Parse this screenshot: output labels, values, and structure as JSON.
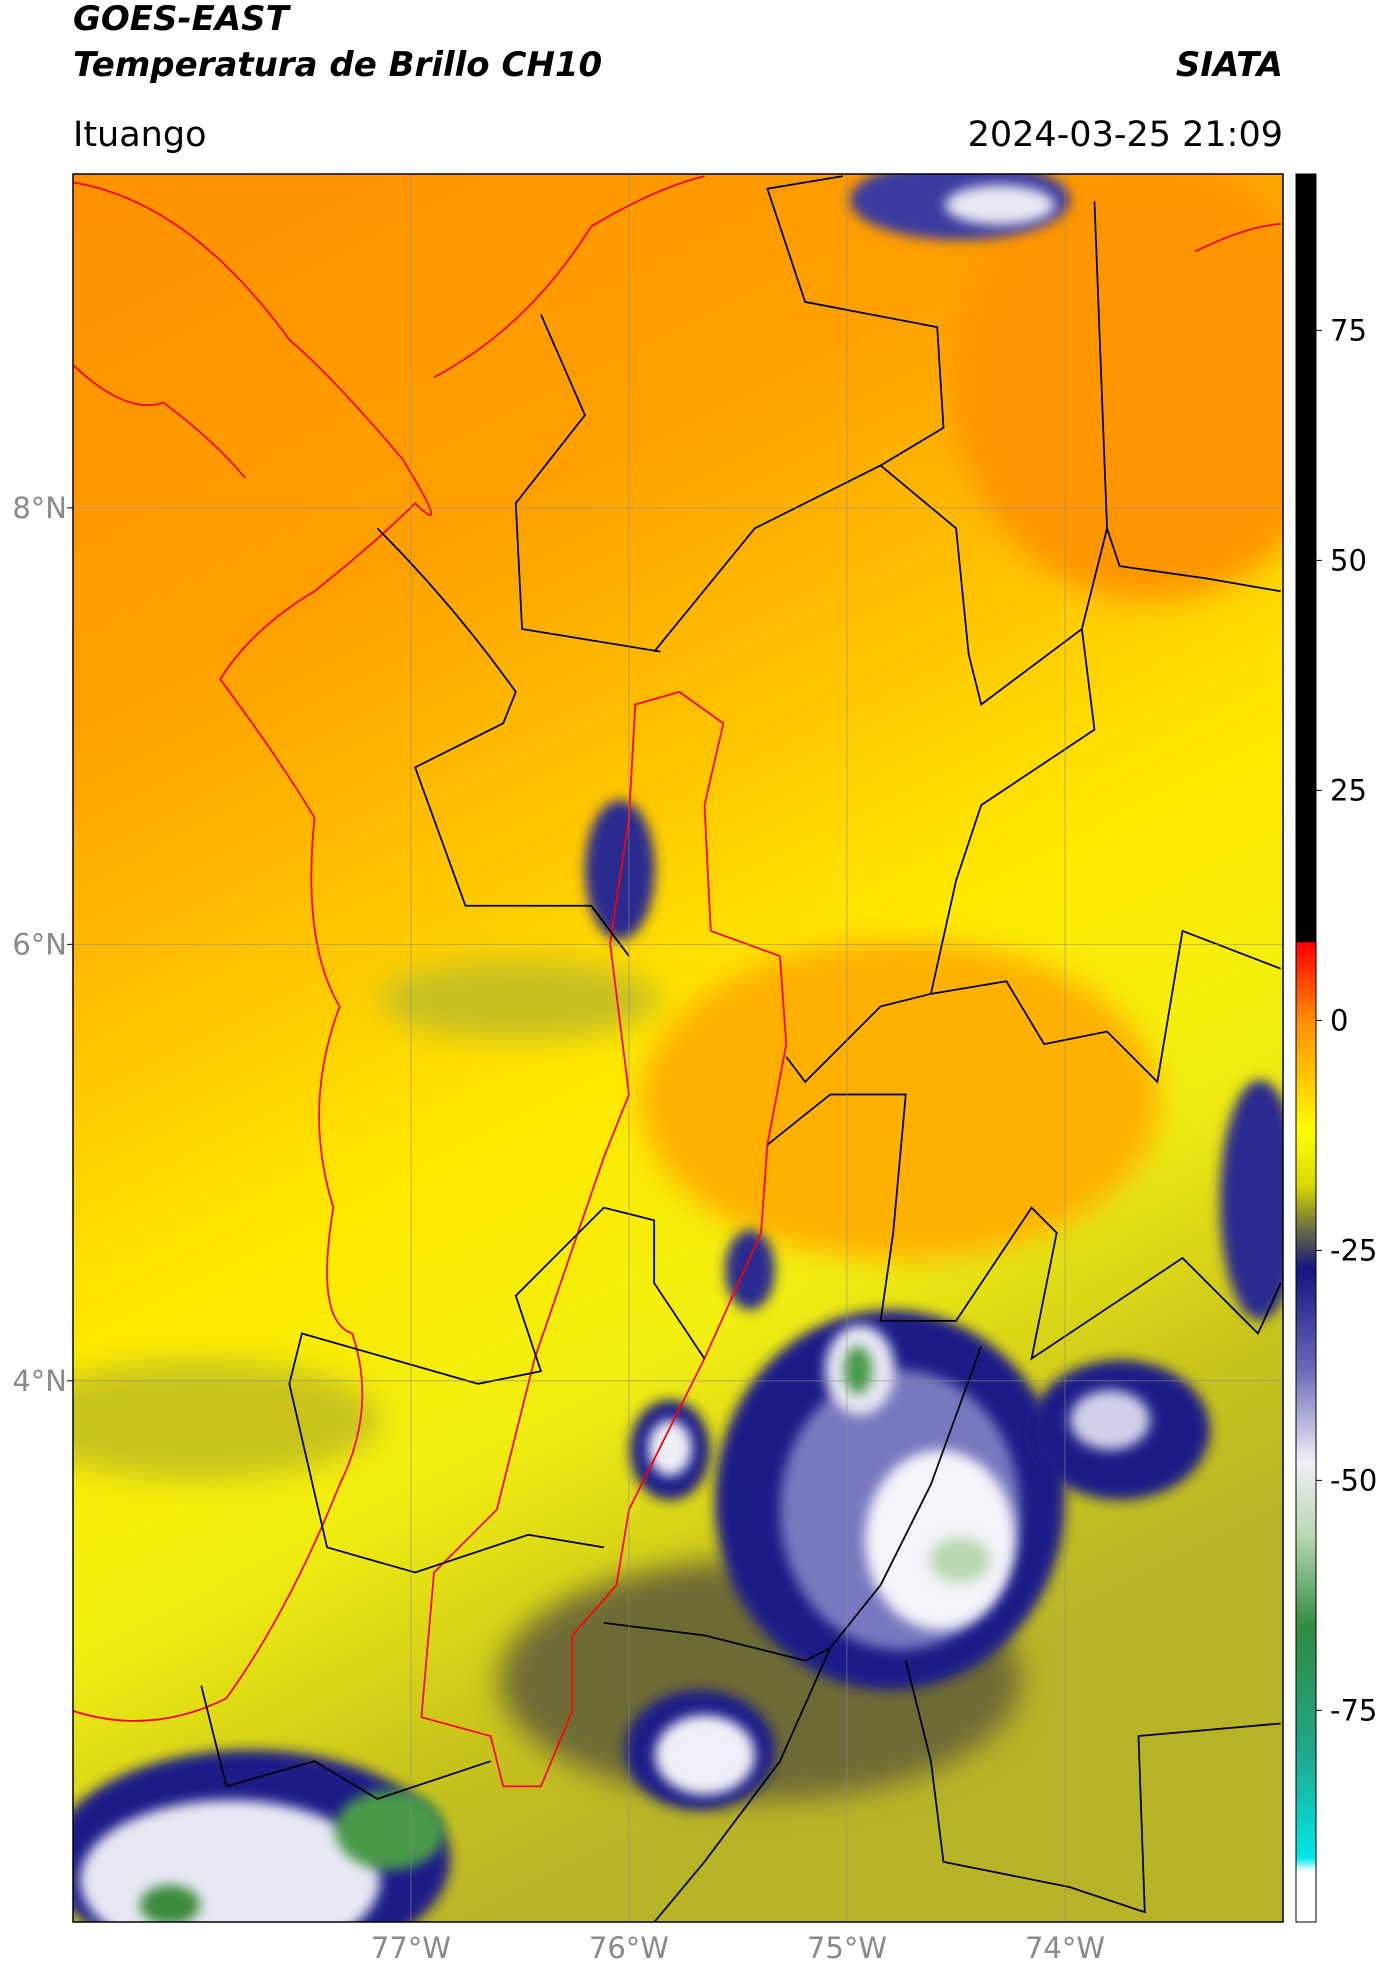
{
  "header": {
    "title": "GOES-EAST",
    "subtitle": "Temperatura de Brillo CH10",
    "source": "SIATA",
    "region": "Ituango",
    "datetime": "2024-03-25 21:09"
  },
  "map": {
    "xlim": [
      -78.55,
      -73.0
    ],
    "ylim": [
      1.52,
      9.53
    ],
    "xticks": [
      {
        "value": -77,
        "label": "77°W"
      },
      {
        "value": -76,
        "label": "76°W"
      },
      {
        "value": -75,
        "label": "75°W"
      },
      {
        "value": -74,
        "label": "74°W"
      }
    ],
    "yticks": [
      {
        "value": 8,
        "label": "8°N"
      },
      {
        "value": 6,
        "label": "6°N"
      },
      {
        "value": 4,
        "label": "4°N"
      }
    ],
    "grid": true
  },
  "colorbar": {
    "lim": [
      -98,
      92
    ],
    "ticks": [
      75,
      50,
      25,
      0,
      -25,
      -50,
      -75
    ],
    "colormap": [
      [
        92,
        "#000000"
      ],
      [
        8.6,
        "#000000"
      ],
      [
        8.4,
        "#ff0000"
      ],
      [
        0,
        "#ff8c00"
      ],
      [
        -12,
        "#ffff00"
      ],
      [
        -18,
        "#d8d800"
      ],
      [
        -22,
        "#7a7a3a"
      ],
      [
        -27,
        "#141480"
      ],
      [
        -38,
        "#6a6ab8"
      ],
      [
        -48,
        "#f0f0f8"
      ],
      [
        -56,
        "#b8d8b0"
      ],
      [
        -66,
        "#2e8b3e"
      ],
      [
        -80,
        "#20a890"
      ],
      [
        -91,
        "#00e8e8"
      ],
      [
        -92.5,
        "#ffffff"
      ],
      [
        -98,
        "#ffffff"
      ]
    ]
  }
}
